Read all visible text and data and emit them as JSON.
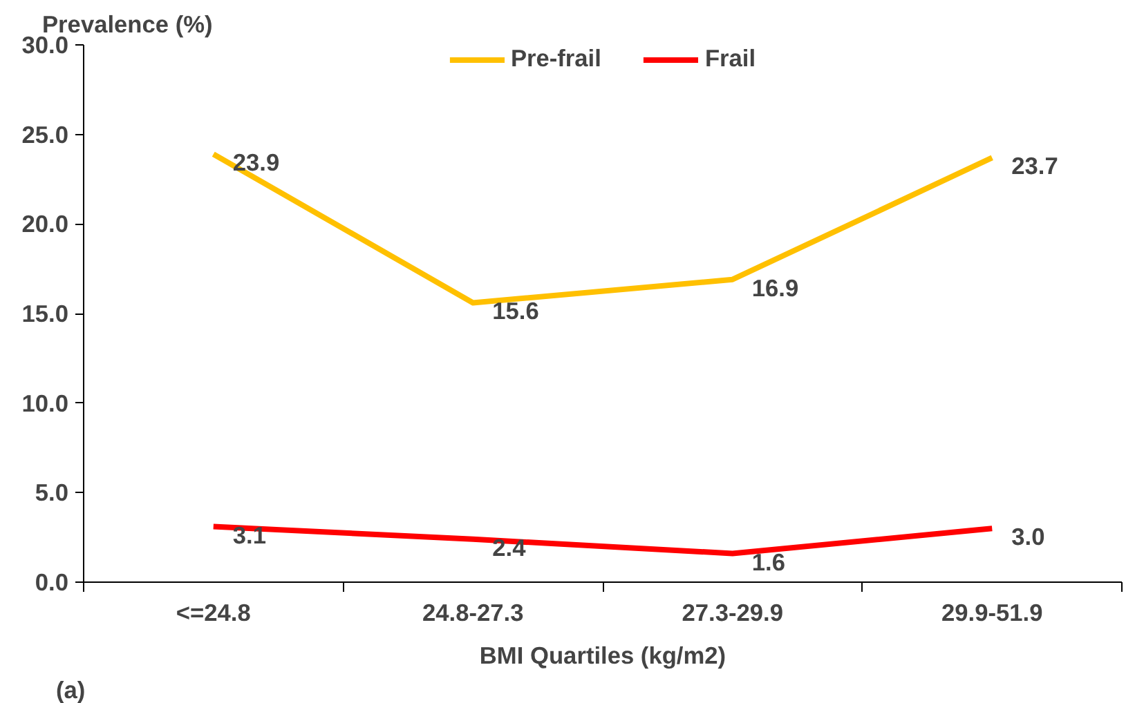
{
  "chart_data": {
    "type": "line",
    "ylabel": "Prevalence (%)",
    "xlabel": "BMI Quartiles (kg/m2)",
    "annotations": [
      "(a)"
    ],
    "categories": [
      "<=24.8",
      "24.8-27.3",
      "27.3-29.9",
      "29.9-51.9"
    ],
    "series": [
      {
        "name": "Pre-frail",
        "color": "#ffc000",
        "values": [
          23.9,
          15.6,
          16.9,
          23.7
        ],
        "value_labels": [
          "23.9",
          "15.6",
          "16.9",
          "23.7"
        ]
      },
      {
        "name": "Frail",
        "color": "#ff0000",
        "values": [
          3.1,
          2.4,
          1.6,
          3.0
        ],
        "value_labels": [
          "3.1",
          "2.4",
          "1.6",
          "3.0"
        ]
      }
    ],
    "ylim": [
      0,
      30
    ],
    "yticks": [
      {
        "value": 0,
        "label": "0.0"
      },
      {
        "value": 5,
        "label": "5.0"
      },
      {
        "value": 10,
        "label": "10.0"
      },
      {
        "value": 15,
        "label": "15.0"
      },
      {
        "value": 20,
        "label": "20.0"
      },
      {
        "value": 25,
        "label": "25.0"
      },
      {
        "value": 30,
        "label": "30.0"
      }
    ],
    "legend": "top",
    "grid": false,
    "marker": "none",
    "line_style": "solid"
  }
}
